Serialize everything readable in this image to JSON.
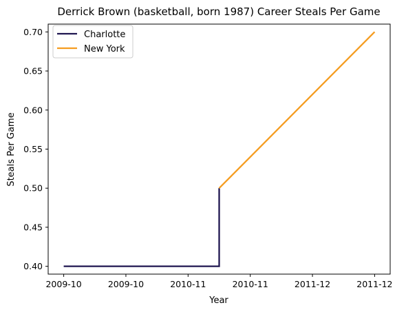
{
  "chart_data": {
    "type": "line",
    "title": "Derrick Brown (basketball, born 1987) Career Steals Per Game",
    "xlabel": "Year",
    "ylabel": "Steals Per Game",
    "x_tick_labels": [
      "2009-10",
      "2009-10",
      "2010-11",
      "2010-11",
      "2011-12",
      "2011-12"
    ],
    "y_ticks": [
      0.4,
      0.45,
      0.5,
      0.55,
      0.6,
      0.65,
      0.7
    ],
    "y_tick_labels": [
      "0.40",
      "0.45",
      "0.50",
      "0.55",
      "0.60",
      "0.65",
      "0.70"
    ],
    "ylim": [
      0.39,
      0.71
    ],
    "xlim": [
      -0.15,
      3.15
    ],
    "grid": false,
    "legend_position": "top-left",
    "series": [
      {
        "name": "Charlotte",
        "color": "#1f1650",
        "points": [
          {
            "x": 0.0,
            "y": 0.4
          },
          {
            "x": 1.5,
            "y": 0.4
          },
          {
            "x": 1.5,
            "y": 0.5
          }
        ]
      },
      {
        "name": "New York",
        "color": "#f59c1f",
        "points": [
          {
            "x": 1.5,
            "y": 0.5
          },
          {
            "x": 3.0,
            "y": 0.7
          }
        ]
      }
    ]
  }
}
